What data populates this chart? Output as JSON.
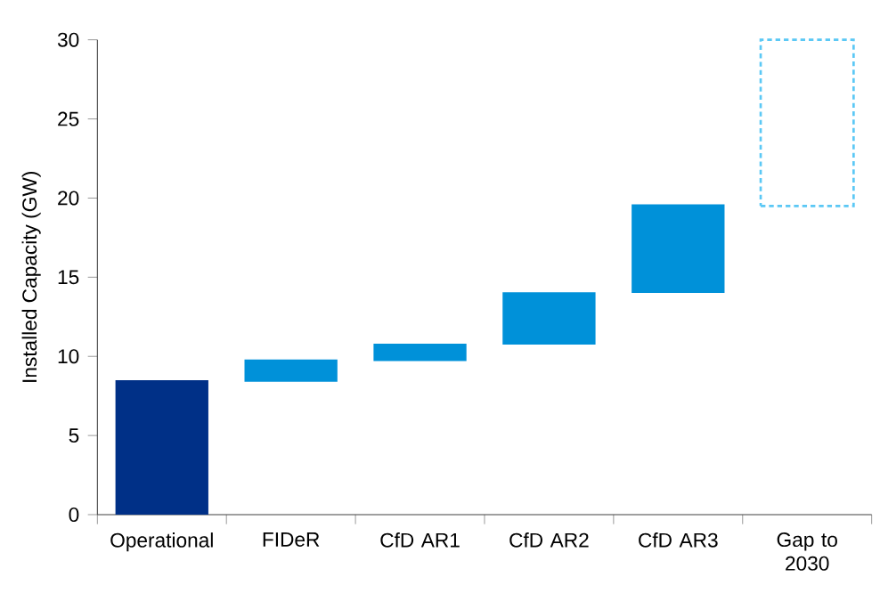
{
  "chart_data": {
    "type": "bar",
    "ylabel": "Installed Capacity (GW)",
    "categories": [
      "Operational",
      "FIDeR",
      "CfD AR1",
      "CfD AR2",
      "CfD AR3",
      "Gap to 2030"
    ],
    "series": [
      {
        "colors": [
          "#003087",
          "#0091d9",
          "#0091d9",
          "#0091d9",
          "#0091d9",
          "#0091d9"
        ],
        "base": [
          0,
          8.4,
          9.7,
          10.75,
          14.0,
          null
        ],
        "values": [
          8.5,
          1.4,
          1.1,
          3.3,
          5.6,
          null
        ]
      },
      {
        "color": "#5bc8f5",
        "line_style": "dashed",
        "base": [
          null,
          null,
          null,
          null,
          null,
          19.5
        ],
        "values": [
          null,
          null,
          null,
          null,
          null,
          10.5
        ]
      }
    ],
    "ylim": [
      0,
      30
    ],
    "yticks": [
      0,
      5,
      10,
      15,
      20,
      25,
      30
    ],
    "grid": false
  }
}
